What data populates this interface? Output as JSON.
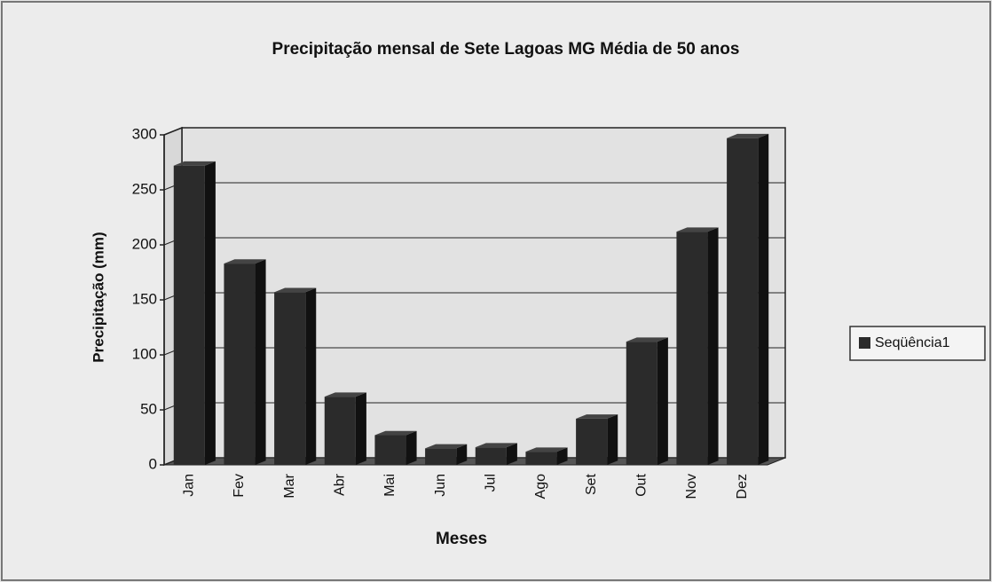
{
  "chart_data": {
    "type": "bar",
    "title": "Precipitação mensal de Sete Lagoas MG Média de 50 anos",
    "x_label": "Meses",
    "y_label": "Precipitação (mm)",
    "categories": [
      "Jan",
      "Fev",
      "Mar",
      "Abr",
      "Mai",
      "Jun",
      "Jul",
      "Ago",
      "Set",
      "Out",
      "Nov",
      "Dez"
    ],
    "series": [
      {
        "name": "Seqüência1",
        "color": "#2b2b2b",
        "values": [
          272,
          183,
          157,
          62,
          27,
          15,
          16,
          12,
          42,
          112,
          212,
          297
        ]
      }
    ],
    "ylim": [
      0,
      300
    ],
    "yticks": [
      0,
      50,
      100,
      150,
      200,
      250,
      300
    ],
    "grid": true,
    "legend": "right"
  }
}
